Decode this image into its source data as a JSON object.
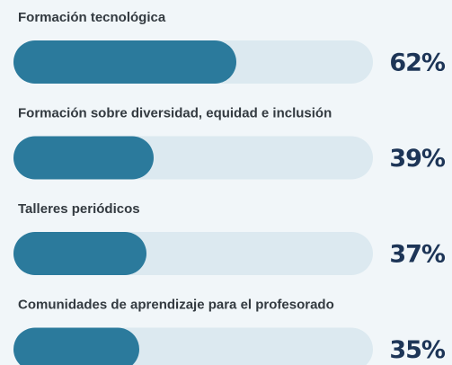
{
  "chart_data": {
    "type": "bar",
    "orientation": "horizontal",
    "categories": [
      "Formación tecnológica",
      "Formación sobre diversidad, equidad e inclusión",
      "Talleres periódicos",
      "Comunidades de aprendizaje para el profesorado"
    ],
    "values": [
      62,
      39,
      37,
      35
    ],
    "value_labels": [
      "62%",
      "39%",
      "37%",
      "35%"
    ],
    "color": "#2b7a9c",
    "track_color": "#dce9f0",
    "xlim": [
      0,
      100
    ]
  }
}
